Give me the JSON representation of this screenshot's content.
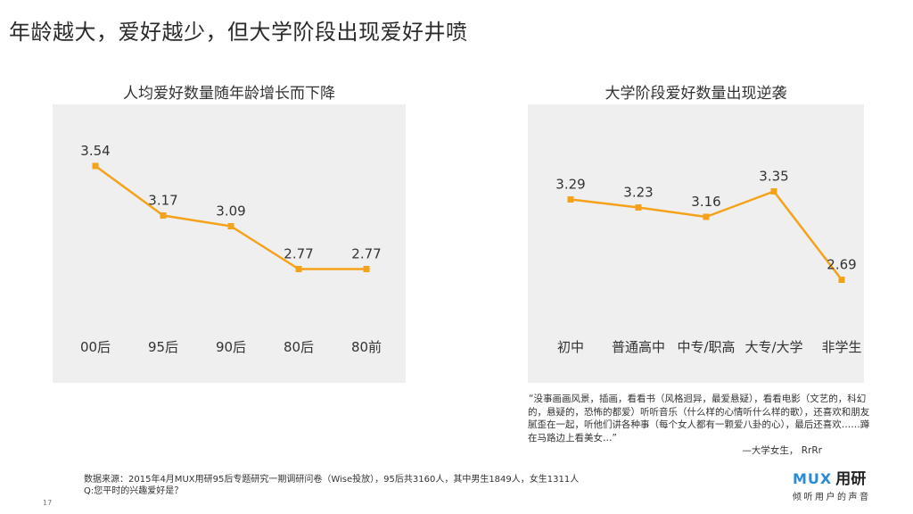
{
  "slide_title": "年龄越大，爱好越少，但大学阶段出现爱好井喷",
  "chart_data": [
    {
      "type": "line",
      "title": "人均爱好数量随年龄增长而下降",
      "categories": [
        "00后",
        "95后",
        "90后",
        "80后",
        "80前"
      ],
      "values": [
        3.54,
        3.17,
        3.09,
        2.77,
        2.77
      ],
      "data_labels": [
        "3.54",
        "3.17",
        "3.09",
        "2.77",
        "2.77"
      ],
      "ylim": [
        2.0,
        3.8
      ],
      "color": "#f5a21b",
      "grid": false
    },
    {
      "type": "line",
      "title": "大学阶段爱好数量出现逆袭",
      "categories": [
        "初中",
        "普通高中",
        "中专/职高",
        "大专/大学",
        "非学生"
      ],
      "values": [
        3.29,
        3.23,
        3.16,
        3.35,
        2.69
      ],
      "data_labels": [
        "3.29",
        "3.23",
        "3.16",
        "3.35",
        "2.69"
      ],
      "ylim": [
        2.0,
        3.8
      ],
      "color": "#f5a21b",
      "grid": false
    }
  ],
  "quote": {
    "text": "“没事画画风景，插画，看看书（风格迥异，最爱悬疑），看看电影（文艺的，科幻的，悬疑的，恐怖的都爱）听听音乐（什么样的心情听什么样的歌），还喜欢和朋友腻歪在一起，听他们讲各种事（每个女人都有一颗爱八卦的心），最后还喜欢……蹲在马路边上看美女…”",
    "signature": "—大学女生， RrRr"
  },
  "source": {
    "line1": "数据来源：2015年4月MUX用研95后专题研究一期调研问卷（Wise投放），95后共3160人，其中男生1849人，女生1311人",
    "line2": "Q:您平时的兴趣爱好是？"
  },
  "page_number": "17",
  "logo": {
    "brand": "MUX",
    "name": "用研",
    "slogan": "倾听用户的声音"
  }
}
